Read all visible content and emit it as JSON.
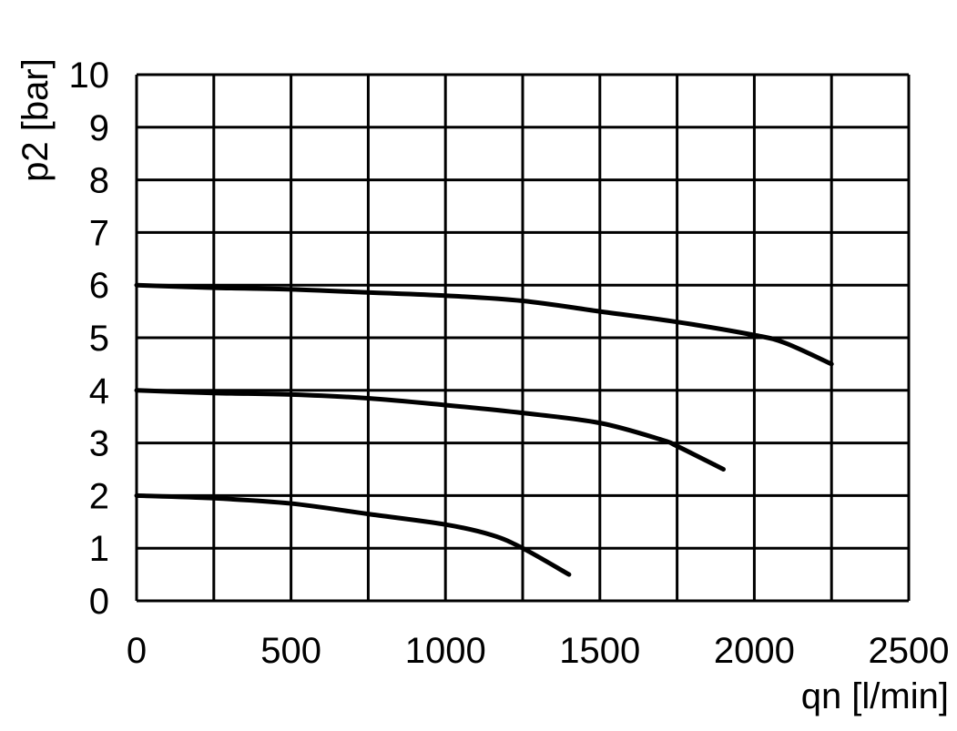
{
  "chart_data": {
    "type": "line",
    "title": "",
    "xlabel": "qn [l/min]",
    "ylabel": "p2 [bar]",
    "xlim": [
      0,
      2500
    ],
    "ylim": [
      0,
      10
    ],
    "x_ticks": [
      0,
      500,
      1000,
      1500,
      2000,
      2500
    ],
    "y_ticks": [
      0,
      1,
      2,
      3,
      4,
      5,
      6,
      7,
      8,
      9,
      10
    ],
    "x_grid_step": 250,
    "y_grid_step": 1,
    "grid": true,
    "legend": "none",
    "series": [
      {
        "x": [
          0,
          250,
          500,
          750,
          1000,
          1250,
          1500,
          1750,
          2000,
          2100,
          2250
        ],
        "y": [
          6.0,
          5.95,
          5.92,
          5.86,
          5.8,
          5.7,
          5.5,
          5.3,
          5.05,
          4.9,
          4.5
        ]
      },
      {
        "x": [
          0,
          250,
          500,
          750,
          1000,
          1250,
          1500,
          1700,
          1750,
          1900
        ],
        "y": [
          4.0,
          3.95,
          3.92,
          3.85,
          3.72,
          3.57,
          3.38,
          3.06,
          2.94,
          2.5
        ]
      },
      {
        "x": [
          0,
          250,
          500,
          750,
          1000,
          1150,
          1250,
          1400
        ],
        "y": [
          2.0,
          1.95,
          1.85,
          1.65,
          1.45,
          1.25,
          1.0,
          0.5
        ]
      }
    ]
  }
}
